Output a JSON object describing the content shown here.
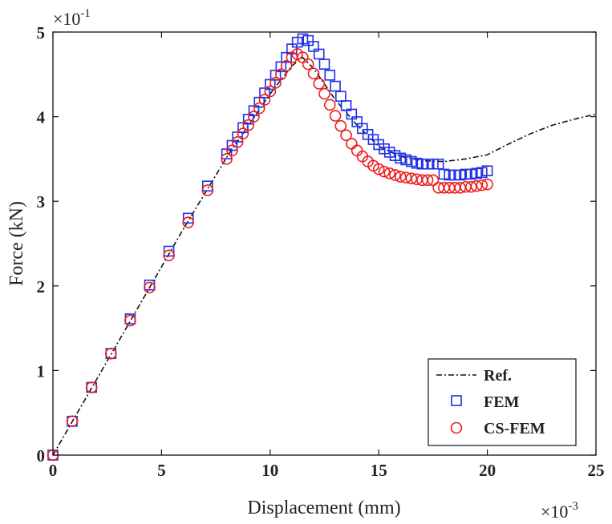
{
  "chart_data": {
    "type": "line",
    "title": "",
    "xlabel": "Displacement (mm)",
    "ylabel": "Force (kN)",
    "xlim": [
      0,
      25
    ],
    "ylim": [
      0,
      5
    ],
    "x_ticks": [
      0,
      5,
      10,
      15,
      20,
      25
    ],
    "x_tick_labels": [
      "0",
      "5",
      "10",
      "15",
      "20",
      "25"
    ],
    "y_ticks": [
      0,
      1,
      2,
      3,
      4,
      5
    ],
    "y_tick_labels": [
      "0",
      "1",
      "2",
      "3",
      "4",
      "5"
    ],
    "x_multiplier": {
      "base": "×10",
      "exponent": "-3"
    },
    "y_multiplier": {
      "base": "×10",
      "exponent": "-1"
    },
    "grid": false,
    "legend_position": "bottom-right",
    "series": [
      {
        "name": "Ref.",
        "style": "dash-dot",
        "color": "#111111",
        "x": [
          0,
          2,
          4,
          6,
          8,
          10,
          11,
          11.5,
          12,
          13,
          14,
          15,
          16,
          17,
          18,
          19,
          20,
          21,
          22,
          23,
          24,
          25
        ],
        "y": [
          0,
          0.89,
          1.78,
          2.67,
          3.52,
          4.27,
          4.6,
          4.7,
          4.57,
          4.2,
          3.9,
          3.65,
          3.53,
          3.48,
          3.47,
          3.5,
          3.55,
          3.68,
          3.8,
          3.9,
          3.97,
          4.03
        ]
      },
      {
        "name": "FEM",
        "marker": "square",
        "color": "#1f2fe8",
        "x": [
          0,
          0.89,
          1.78,
          2.67,
          3.56,
          4.45,
          5.34,
          6.23,
          7.12,
          8.0,
          8.25,
          8.5,
          8.75,
          9.0,
          9.25,
          9.5,
          9.75,
          10.0,
          10.25,
          10.5,
          10.75,
          11.0,
          11.25,
          11.5,
          11.75,
          12.0,
          12.25,
          12.5,
          12.75,
          13.0,
          13.25,
          13.5,
          13.75,
          14.0,
          14.25,
          14.5,
          14.75,
          15.0,
          15.25,
          15.5,
          15.75,
          16.0,
          16.25,
          16.5,
          16.75,
          17.0,
          17.25,
          17.5,
          17.75,
          18.0,
          18.25,
          18.5,
          18.75,
          19.0,
          19.25,
          19.5,
          19.75,
          20.0
        ],
        "y": [
          0,
          0.4,
          0.8,
          1.2,
          1.61,
          2.01,
          2.41,
          2.8,
          3.18,
          3.56,
          3.66,
          3.76,
          3.87,
          3.97,
          4.07,
          4.17,
          4.28,
          4.38,
          4.49,
          4.59,
          4.7,
          4.8,
          4.88,
          4.92,
          4.9,
          4.83,
          4.74,
          4.62,
          4.49,
          4.36,
          4.24,
          4.13,
          4.03,
          3.94,
          3.86,
          3.79,
          3.73,
          3.67,
          3.62,
          3.58,
          3.54,
          3.51,
          3.49,
          3.47,
          3.45,
          3.44,
          3.44,
          3.44,
          3.44,
          3.32,
          3.31,
          3.31,
          3.31,
          3.32,
          3.32,
          3.33,
          3.34,
          3.36
        ]
      },
      {
        "name": "CS-FEM",
        "marker": "circle",
        "color": "#ee1c1c",
        "x": [
          0,
          0.89,
          1.78,
          2.67,
          3.56,
          4.45,
          5.34,
          6.23,
          7.12,
          8.0,
          8.25,
          8.5,
          8.75,
          9.0,
          9.25,
          9.5,
          9.75,
          10.0,
          10.25,
          10.5,
          10.75,
          11.0,
          11.25,
          11.5,
          11.75,
          12.0,
          12.25,
          12.5,
          12.75,
          13.0,
          13.25,
          13.5,
          13.75,
          14.0,
          14.25,
          14.5,
          14.75,
          15.0,
          15.25,
          15.5,
          15.75,
          16.0,
          16.25,
          16.5,
          16.75,
          17.0,
          17.25,
          17.5,
          17.75,
          18.0,
          18.25,
          18.5,
          18.75,
          19.0,
          19.25,
          19.5,
          19.75,
          20.0
        ],
        "y": [
          0,
          0.4,
          0.8,
          1.2,
          1.59,
          1.98,
          2.36,
          2.75,
          3.13,
          3.5,
          3.6,
          3.7,
          3.8,
          3.9,
          4.0,
          4.1,
          4.2,
          4.3,
          4.4,
          4.5,
          4.6,
          4.7,
          4.74,
          4.7,
          4.62,
          4.51,
          4.39,
          4.27,
          4.14,
          4.01,
          3.89,
          3.78,
          3.68,
          3.6,
          3.53,
          3.47,
          3.42,
          3.38,
          3.35,
          3.33,
          3.31,
          3.29,
          3.28,
          3.27,
          3.26,
          3.25,
          3.25,
          3.25,
          3.16,
          3.16,
          3.16,
          3.16,
          3.16,
          3.17,
          3.17,
          3.18,
          3.19,
          3.2
        ]
      }
    ]
  }
}
